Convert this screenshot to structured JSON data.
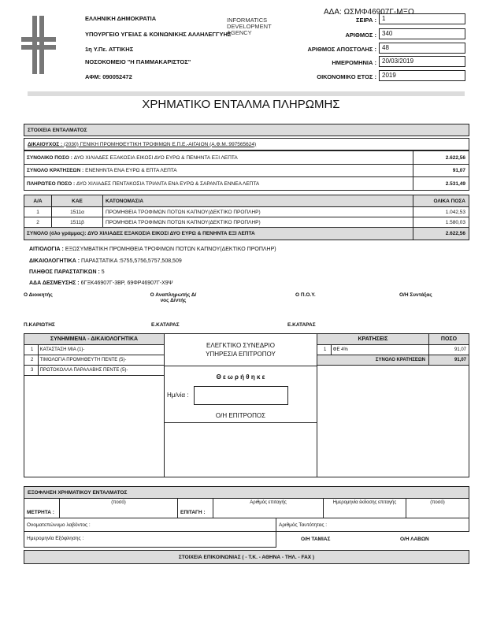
{
  "header": {
    "left_lines": [
      "ΕΛΛΗΝΙΚΗ ΔΗΜΟΚΡΑΤΙΑ",
      "ΥΠΟΥΡΓΕΙΟ ΥΓΕΙΑΣ & ΚΟΙΝΩΝΙΚΗΣ ΑΛΛΗΛΕΓΓΥΗΣ",
      "1η Υ.Πε. ΑΤΤΙΚΗΣ",
      "ΝΟΣΟΚΟΜΕΙΟ \"Η ΠΑΜΜΑΚΑΡΙΣΤΟΣ\"",
      "ΑΦΜ: 090052472"
    ],
    "stamp": "INFORMATICS DEVELOPMENT AGENCY",
    "ada": "ΑΔΑ: ΩΣΜΦ46907Γ-ΜΞΟ",
    "fields": [
      {
        "label": "ΣΕΙΡΑ :",
        "value": "1"
      },
      {
        "label": "ΑΡΙΘΜΟΣ :",
        "value": "340"
      },
      {
        "label": "ΑΡΙΘΜΟΣ ΑΠΟΣΤΟΛΗΣ :",
        "value": "48"
      },
      {
        "label": "ΗΜΕΡΟΜΗΝΙΑ :",
        "value": "20/03/2019"
      },
      {
        "label": "ΟΙΚΟΝΟΜΙΚΟ ΕΤΟΣ :",
        "value": "2019"
      }
    ]
  },
  "title": "ΧΡΗΜΑΤΙΚΟ ΕΝΤΑΛΜΑ ΠΛΗΡΩΜΗΣ",
  "order": {
    "section": "ΣΤΟΙΧΕΙΑ ΕΝΤΑΛΜΑΤΟΣ",
    "beneficiary_label": "ΔΙΚΑΙΟΥΧΟΣ :",
    "beneficiary": "(2030) ΓΕΝΙΚΗ ΠΡΟΜΗΘΕΥΤΙΚΗ ΤΡΟΦΙΜΩΝ Ε.Π.Ε.-ΑΙΓΑΙΟΝ (Α.Φ.Μ.:997565624)",
    "totals": [
      {
        "label": "ΣΥΝΟΛΙΚΟ ΠΟΣΟ :",
        "words": "ΔΥΟ ΧΙΛΙΑΔΕΣ ΕΞΑΚΟΣΙΑ ΕΙΚΟΣΙ ΔΥΟ ΕΥΡΩ & ΠΕΝΗΝΤΑ ΕΞΙ ΛΕΠΤΑ",
        "amount": "2.622,56"
      },
      {
        "label": "ΣΥΝΟΛΟ ΚΡΑΤΗΣΕΩΝ :",
        "words": "ΕΝΕΝΗΝΤΑ ΕΝΑ ΕΥΡΩ & ΕΠΤΑ ΛΕΠΤΑ",
        "amount": "91,07"
      },
      {
        "label": "ΠΛΗΡΩΤΕΟ ΠΟΣΟ :",
        "words": "ΔΥΟ ΧΙΛΙΑΔΕΣ ΠΕΝΤΑΚΟΣΙΑ ΤΡΙΑΝΤΑ ΕΝΑ ΕΥΡΩ & ΣΑΡΑΝΤΑ ΕΝΝΕΑ ΛΕΠΤΑ",
        "amount": "2.531,49"
      }
    ],
    "columns": [
      "Α/Α",
      "ΚΑΕ",
      "ΚΑΤΟΝΟΜΑΣΙΑ",
      "ΟΛΙΚΑ ΠΟΣΑ"
    ],
    "items": [
      {
        "aa": "1",
        "kae": "1511α",
        "name": "ΠΡΟΜΗΘΕΙΑ ΤΡΟΦΙΜΩΝ ΠΟΤΩΝ ΚΑΠΝΟΥ(ΔΕΚΤΙΚΟ ΠΡΟΠΛΗΡ)",
        "amount": "1.042,53"
      },
      {
        "aa": "2",
        "kae": "1511β",
        "name": "ΠΡΟΜΗΘΕΙΑ ΤΡΟΦΙΜΩΝ ΠΟΤΩΝ ΚΑΠΝΟΥ(ΔΕΚΤΙΚΟ ΠΡΟΠΛΗΡ)",
        "amount": "1.580,03"
      }
    ],
    "sum_label": "ΣΥΝΟΛΟ (όλο γράμμας): ΔΥΟ ΧΙΛΙΑΔΕΣ ΕΞΑΚΟΣΙΑ ΕΙΚΟΣΙ ΔΥΟ ΕΥΡΩ & ΠΕΝΗΝΤΑ ΕΞΙ ΛΕΠΤΑ",
    "sum_amount": "2.622,56"
  },
  "details": [
    {
      "label": "ΑΙΤΙΟΛΟΓΙΑ :",
      "value": "ΕΞΩΣΥΜΒΑΤΙΚΗ ΠΡΟΜΗΘΕΙΑ ΤΡΟΦΙΜΩΝ ΠΟΤΩΝ ΚΑΠΝΟΥ(ΔΕΚΤΙΚΟ ΠΡΟΠΛΗΡ)"
    },
    {
      "label": "ΔΙΚΑΙΟΛΟΓΗΤΙΚΑ :",
      "value": "ΠΑΡΑΣΤΑΤΙΚΑ :5755,5756,5757,508,509"
    },
    {
      "label": "ΠΛΗΘΟΣ ΠΑΡΑΣΤΑΤΙΚΩΝ :",
      "value": "5"
    },
    {
      "label": "ΑΔΑ ΔΕΣΜΕΥΣΗΣ :",
      "value": "6ΓΞΚ46907Γ-3ΒΡ, 69ΦΡ46907Γ-Χ9Ψ"
    }
  ],
  "signatures": [
    "Ο Διοικητής",
    "Ο Αναπληρωτής Δ/νος Δ/ντής",
    "Ο Π.Ο.Υ.",
    "Ο/Η Συντάξας"
  ],
  "signers": [
    "Π.ΚΑΡΙΩΤΗΣ",
    "Ε.ΚΑΤΑΡΑΣ",
    "Ε.ΚΑΤΑΡΑΣ"
  ],
  "attachments": {
    "title": "ΣΥΝΗΜΜΕΝΑ - ΔΙΚΑΙΟΛΟΓΗΤΙΚΑ",
    "items": [
      {
        "n": "1",
        "t": "ΚΑΤΑΣΤΑΣΗ ΜΙΑ (1)-"
      },
      {
        "n": "2",
        "t": "ΤΙΜΟΛΟΓΙΑ ΠΡΟΜΗΘΕΥΤΗ ΠΕΝΤΕ (5)-"
      },
      {
        "n": "3",
        "t": "ΠΡΩΤΟΚΟΛΛΑ ΠΑΡΑΛΑΒΗΣ ΠΕΝΤΕ (5)-"
      }
    ]
  },
  "audit": {
    "line1": "ΕΛΕΓΚΤΙΚΟ ΣΥΝΕΔΡΙΟ",
    "line2": "ΥΠΗΡΕΣΙΑ ΕΠΙΤΡΟΠΟΥ",
    "approved": "Θ ε ω ρ ή θ η κ ε",
    "date_label": "Ημ/νία :",
    "date_value": "",
    "officer": "Ο/Η ΕΠΙΤΡΟΠΟΣ"
  },
  "deductions": {
    "title": "ΚΡΑΤΗΣΕΙΣ",
    "amount_title": "ΠΟΣΟ",
    "items": [
      {
        "n": "1",
        "t": "ΦΕ 4%",
        "amount": "91,07"
      }
    ],
    "total_label": "ΣΥΝΟΛΟ ΚΡΑΤΗΣΕΩΝ",
    "total": "91,07"
  },
  "payment": {
    "title": "ΕΞΟΦΛΗΣΗ ΧΡΗΜΑΤΙΚΟΥ ΕΝΤΑΛΜΑΤΟΣ",
    "cash": "ΜΕΤΡΗΤΑ :",
    "amount_hint": "(ποσό)",
    "cheque": "ΕΠΙΤΑΓΗ :",
    "cheque_no": "Αριθμός επιταγής",
    "cheque_date": "Ημερομηνία έκδοσης επιταγής",
    "amount_hint2": "(ποσό)",
    "name": "Ονοματεπώνυμο λαβόντος :",
    "id": "Αριθμός Ταυτότητας :",
    "date": "Ημερομηνία Εξόφλησης :",
    "cashier": "Ο/Η ΤΑΜΙΑΣ",
    "receiver": "Ο/Η ΛΑΒΩΝ"
  },
  "footer": "ΣΤΟΙΧΕΙΑ ΕΠΙΚΟΙΝΩΝΙΑΣ ( - Τ.Κ. - ΑΘΗΝΑ - ΤΗΛ. - FAX )"
}
